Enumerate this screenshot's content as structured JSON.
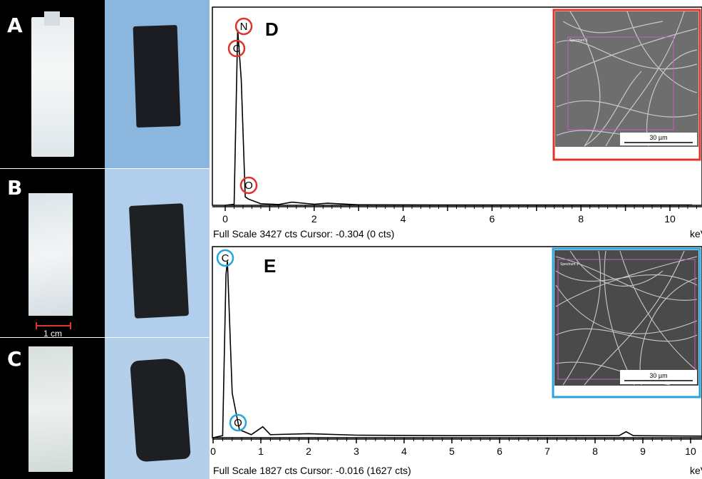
{
  "panels": {
    "A": "A",
    "B": "B",
    "C": "C",
    "D": "D",
    "E": "E"
  },
  "photo_scale_bar": "1 cm",
  "colors": {
    "spectrum_d_accent": "#e0332b",
    "spectrum_e_accent": "#24a6dc",
    "photo_black_bg": "#000000",
    "photo_blue_bg_A": "#8bb6dd",
    "photo_blue_bg_B": "#b1cfec",
    "photo_blue_bg_C": "#b4cfea"
  },
  "spectrum_d": {
    "peak_labels": [
      "N",
      "C",
      "O"
    ],
    "x_ticks": [
      "0",
      "2",
      "4",
      "6",
      "8",
      "10"
    ],
    "unit": "keV",
    "status": "Full Scale 3427 cts Cursor: -0.304  (0 cts)",
    "inset_spectrum_label": "Spectrum 1",
    "inset_scale": "30 µm"
  },
  "spectrum_e": {
    "peak_labels": [
      "C",
      "O"
    ],
    "x_ticks": [
      "0",
      "1",
      "2",
      "3",
      "4",
      "5",
      "6",
      "7",
      "8",
      "9",
      "10"
    ],
    "unit": "keV",
    "status": "Full Scale 1827 cts Cursor: -0.016  (1627 cts)",
    "inset_spectrum_label": "Spectrum 1",
    "inset_scale": "30 µm"
  },
  "chart_data": [
    {
      "type": "line",
      "x": [
        0.0,
        0.2,
        0.28,
        0.36,
        0.45,
        0.52,
        0.8,
        1.2,
        1.5,
        2.0,
        2.3,
        3.0,
        5.0,
        8.0,
        10.5
      ],
      "y": [
        0,
        20,
        3350,
        2400,
        160,
        120,
        30,
        15,
        60,
        20,
        40,
        10,
        5,
        5,
        5
      ],
      "xlim": [
        -0.3,
        11.0
      ],
      "xlabel": "keV",
      "annotations": [
        "N",
        "C",
        "O"
      ]
    },
    {
      "type": "line",
      "x": [
        0.0,
        0.2,
        0.27,
        0.3,
        0.4,
        0.55,
        0.8,
        1.04,
        1.2,
        2.0,
        3.0,
        5.0,
        8.5,
        8.65,
        8.8,
        10.5
      ],
      "y": [
        0,
        20,
        1650,
        1780,
        450,
        80,
        30,
        110,
        30,
        40,
        25,
        20,
        20,
        60,
        20,
        15
      ],
      "xlim": [
        -0.3,
        10.9
      ],
      "xlabel": "keV",
      "annotations": [
        "C",
        "O"
      ]
    }
  ]
}
